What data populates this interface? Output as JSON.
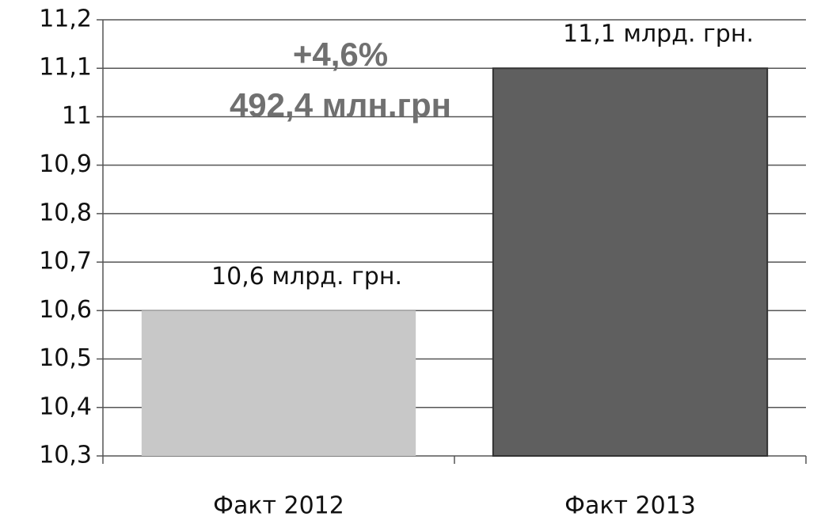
{
  "chart_data": {
    "type": "bar",
    "categories": [
      "Факт 2012",
      "Факт 2013"
    ],
    "values": [
      10.6,
      11.1
    ],
    "value_labels": [
      "10,6 млрд. грн.",
      "11,1 млрд. грн."
    ],
    "colors": [
      "#c8c8c8",
      "#5f5f5f"
    ],
    "annotations": [
      "+4,6%",
      "492,4 млн.грн"
    ],
    "ylim": [
      10.3,
      11.2
    ],
    "yticks": [
      {
        "value": 10.3,
        "label": "10,3"
      },
      {
        "value": 10.4,
        "label": "10,4"
      },
      {
        "value": 10.5,
        "label": "10,5"
      },
      {
        "value": 10.6,
        "label": "10,6"
      },
      {
        "value": 10.7,
        "label": "10,7"
      },
      {
        "value": 10.8,
        "label": "10,8"
      },
      {
        "value": 10.9,
        "label": "10,9"
      },
      11,
      {
        "value": 11.1,
        "label": "11,1"
      },
      {
        "value": 11.2,
        "label": "11,2"
      }
    ],
    "grid": true
  }
}
